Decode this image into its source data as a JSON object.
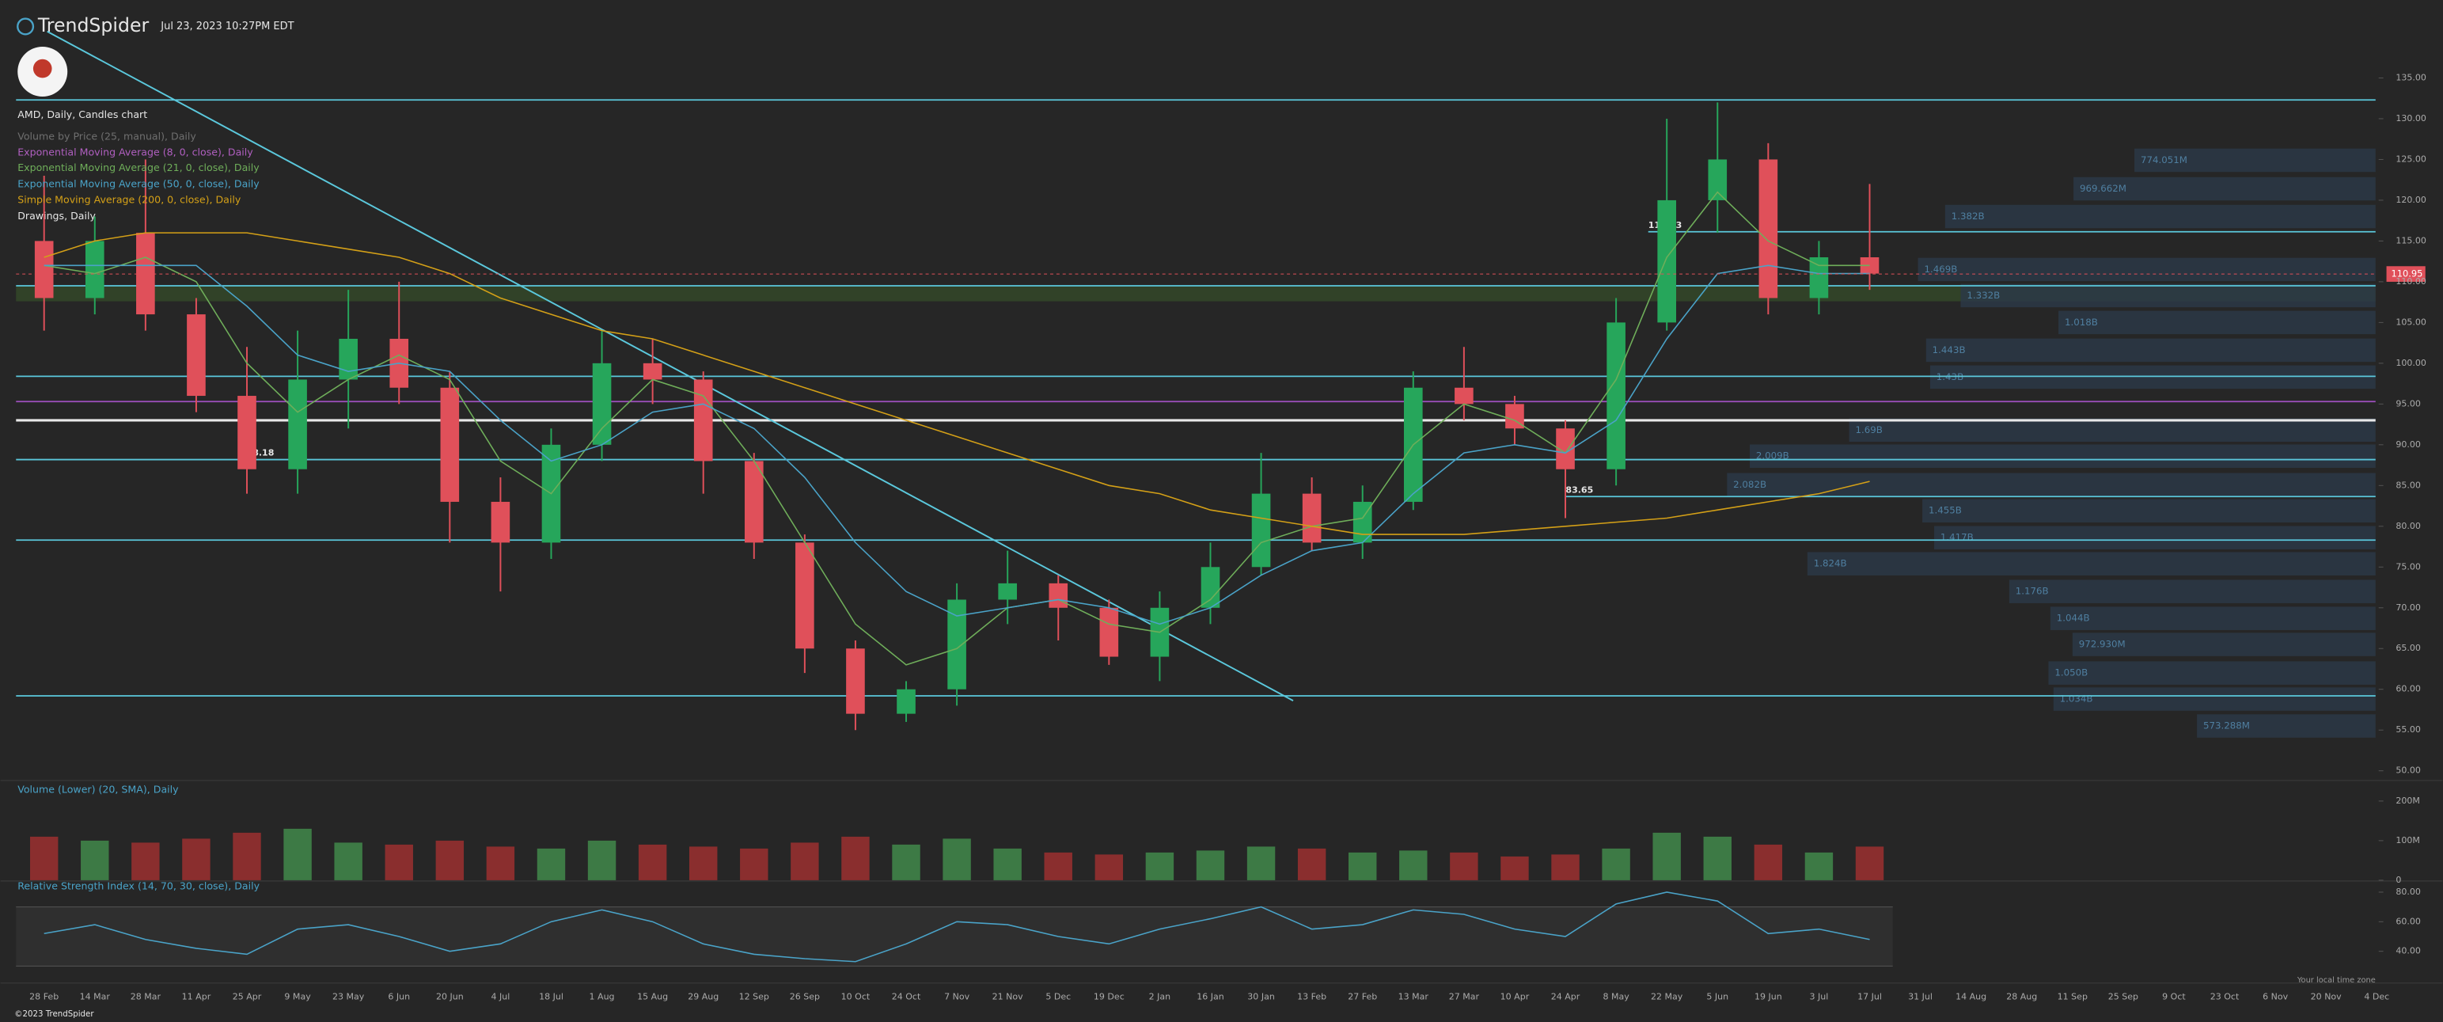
{
  "header": {
    "brand": "TrendSpider",
    "timestamp": "Jul 23, 2023 10:27PM EDT"
  },
  "footer": {
    "copyright": "©2023 TrendSpider",
    "timezone_note": "Your local time zone"
  },
  "chart_data": [
    {
      "type": "candlestick",
      "title": "AMD, Daily, Candles chart",
      "ema8_label": "Exponential Moving Average (8, 0, close), Daily",
      "drawings_label": "Drawings, Daily",
      "x": [
        "28 Feb",
        "14 Mar",
        "28 Mar",
        "11 Apr",
        "25 Apr",
        "9 May",
        "23 May",
        "6 Jun",
        "20 Jun",
        "4 Jul",
        "18 Jul",
        "1 Aug",
        "15 Aug",
        "29 Aug",
        "12 Sep",
        "26 Sep",
        "10 Oct",
        "24 Oct",
        "7 Nov",
        "21 Nov",
        "5 Dec",
        "19 Dec",
        "2 Jan",
        "16 Jan",
        "30 Jan",
        "13 Feb",
        "27 Feb",
        "13 Mar",
        "27 Mar",
        "10 Apr",
        "24 Apr",
        "8 May",
        "22 May",
        "5 Jun",
        "19 Jun",
        "3 Jul",
        "17 Jul",
        "31 Jul",
        "14 Aug",
        "28 Aug",
        "11 Sep",
        "25 Sep",
        "9 Oct",
        "23 Oct",
        "6 Nov",
        "20 Nov",
        "4 Dec"
      ],
      "ohlc": {
        "open": [
          115,
          108,
          116,
          106,
          96,
          87,
          98,
          103,
          97,
          83,
          78,
          90,
          100,
          98,
          88,
          78,
          65,
          57,
          60,
          71,
          73,
          70,
          64,
          70,
          75,
          84,
          78,
          83,
          97,
          95,
          92,
          87,
          105,
          120,
          125,
          108,
          113,
          null,
          null,
          null,
          null,
          null,
          null,
          null,
          null,
          null,
          null
        ],
        "high": [
          123,
          118,
          125,
          108,
          102,
          104,
          109,
          110,
          99,
          86,
          92,
          104,
          103,
          99,
          89,
          79,
          66,
          61,
          73,
          77,
          74,
          71,
          72,
          78,
          89,
          86,
          85,
          99,
          102,
          96,
          93,
          108,
          130,
          132,
          127,
          115,
          122,
          null,
          null,
          null,
          null,
          null,
          null,
          null,
          null,
          null,
          null
        ],
        "low": [
          104,
          106,
          104,
          94,
          84,
          84,
          92,
          95,
          78,
          72,
          76,
          88,
          95,
          84,
          76,
          62,
          55,
          56,
          58,
          68,
          66,
          63,
          61,
          68,
          74,
          77,
          76,
          82,
          93,
          90,
          81,
          85,
          104,
          116,
          106,
          106,
          109,
          null,
          null,
          null,
          null,
          null,
          null,
          null,
          null,
          null,
          null
        ],
        "close": [
          108,
          115,
          106,
          96,
          87,
          98,
          103,
          97,
          83,
          78,
          90,
          100,
          98,
          88,
          78,
          65,
          57,
          60,
          71,
          73,
          70,
          64,
          70,
          75,
          84,
          78,
          83,
          97,
          95,
          92,
          87,
          105,
          120,
          125,
          108,
          113,
          111,
          null,
          null,
          null,
          null,
          null,
          null,
          null,
          null,
          null,
          null
        ]
      },
      "up_color": "#26a65b",
      "down_color": "#e0505a",
      "series": [
        {
          "name": "Exponential Moving Average (21, 0, close), Daily",
          "color": "#6fae5a",
          "values": [
            112,
            111,
            113,
            110,
            100,
            94,
            98,
            101,
            98,
            88,
            84,
            92,
            98,
            96,
            88,
            78,
            68,
            63,
            65,
            70,
            71,
            68,
            67,
            71,
            78,
            80,
            81,
            90,
            95,
            93,
            89,
            98,
            113,
            121,
            115,
            112,
            112,
            null,
            null,
            null,
            null,
            null,
            null,
            null,
            null,
            null,
            null
          ]
        },
        {
          "name": "Exponential Moving Average (50, 0, close), Daily",
          "color": "#4aa3c8",
          "values": [
            112,
            112,
            112,
            112,
            107,
            101,
            99,
            100,
            99,
            93,
            88,
            90,
            94,
            95,
            92,
            86,
            78,
            72,
            69,
            70,
            71,
            70,
            68,
            70,
            74,
            77,
            78,
            84,
            89,
            90,
            89,
            93,
            103,
            111,
            112,
            111,
            111,
            null,
            null,
            null,
            null,
            null,
            null,
            null,
            null,
            null,
            null
          ]
        },
        {
          "name": "Simple Moving Average (200, 0, close), Daily",
          "color": "#d4a017",
          "values": [
            113,
            115,
            116,
            116,
            116,
            115,
            114,
            113,
            111,
            108,
            106,
            104,
            103,
            101,
            99,
            97,
            95,
            93,
            91,
            89,
            87,
            85,
            84,
            82,
            81,
            80,
            79,
            79,
            79,
            79.5,
            80,
            80.5,
            81,
            82,
            83,
            84,
            85.5,
            null,
            null,
            null,
            null,
            null,
            null,
            null,
            null,
            null,
            null
          ]
        }
      ],
      "ylim": [
        49,
        137.3
      ],
      "yticks": [
        {
          "value": 50,
          "label": "50.00"
        },
        {
          "value": 55,
          "label": "55.00"
        },
        {
          "value": 60,
          "label": "60.00"
        },
        {
          "value": 65,
          "label": "65.00"
        },
        {
          "value": 70,
          "label": "70.00"
        },
        {
          "value": 75,
          "label": "75.00"
        },
        {
          "value": 80,
          "label": "80.00"
        },
        {
          "value": 85,
          "label": "85.00"
        },
        {
          "value": 90,
          "label": "90.00"
        },
        {
          "value": 95,
          "label": "95.00"
        },
        {
          "value": 100,
          "label": "100.00"
        },
        {
          "value": 105,
          "label": "105.00"
        },
        {
          "value": 110,
          "label": "110.00"
        },
        {
          "value": 115,
          "label": "115.00"
        },
        {
          "value": 120,
          "label": "120.00"
        },
        {
          "value": 125,
          "label": "125.00"
        },
        {
          "value": 130,
          "label": "130.00"
        },
        {
          "value": 135,
          "label": "135.00"
        }
      ],
      "volume_profile": {
        "name": "Volume by Price (25, manual), Daily",
        "color": "#2b3846",
        "prices": [
          124.9,
          121.4,
          118,
          111.5,
          108.3,
          105,
          101.6,
          98.3,
          91.8,
          88.6,
          85.1,
          81.9,
          78.6,
          75.4,
          72,
          68.7,
          65.5,
          62,
          58.8,
          55.5
        ],
        "values": [
          774051000,
          969662000,
          1382000000,
          1469000000,
          1332000000,
          1018000000,
          1443000000,
          1430000000,
          1690000000,
          2009000000,
          2082000000,
          1455000000,
          1417000000,
          1824000000,
          1176000000,
          1044000000,
          972930000,
          1050000000,
          1034000000,
          573288000
        ],
        "value_labels": [
          "774.051M",
          "969.662M",
          "1.382B",
          "1.469B",
          "1.332B",
          "1.018B",
          "1.443B",
          "1.43B",
          "1.69B",
          "2.009B",
          "2.082B",
          "1.455B",
          "1.417B",
          "1.824B",
          "1.176B",
          "1.044B",
          "972.930M",
          "1.050B",
          "1.034B",
          "573.288M"
        ]
      },
      "levels": [
        132.3,
        109.5,
        98.4,
        95.3,
        93,
        78.3,
        59.2
      ],
      "level_colors": [
        "#5bc8dc",
        "#5bc8dc",
        "#5bc8dc",
        "#a050c0",
        "#e8e8e8",
        "#5bc8dc",
        "#5bc8dc"
      ],
      "annotated_levels": [
        116.13,
        88.18,
        83.65
      ],
      "zone": [
        107.6,
        109.5
      ],
      "trendline": [
        140.7,
        58.6
      ],
      "last_price": 110.95
    },
    {
      "type": "bar",
      "title": "Volume (Lower) (20, SMA), Daily",
      "up_color": "#3d7a45",
      "down_color": "#8a2e2e",
      "values": [
        110000000,
        100000000,
        95000000,
        105000000,
        120000000,
        130000000,
        95000000,
        90000000,
        100000000,
        85000000,
        80000000,
        100000000,
        90000000,
        85000000,
        80000000,
        95000000,
        110000000,
        90000000,
        105000000,
        80000000,
        70000000,
        65000000,
        70000000,
        75000000,
        85000000,
        80000000,
        70000000,
        75000000,
        70000000,
        60000000,
        65000000,
        80000000,
        120000000,
        110000000,
        90000000,
        70000000,
        85000000,
        null,
        null,
        null,
        null,
        null,
        null,
        null,
        null,
        null,
        null
      ],
      "ylim": [
        0,
        244000000
      ],
      "yticks": [
        0,
        {
          "value": 100000000,
          "label": "100M"
        },
        {
          "value": 200000000,
          "label": "200M"
        }
      ]
    },
    {
      "type": "line",
      "title": "Relative Strength Index (14, 70, 30, close), Daily",
      "color": "#4aa3c8",
      "values": [
        52,
        58,
        48,
        42,
        38,
        55,
        58,
        50,
        40,
        45,
        60,
        68,
        60,
        45,
        38,
        35,
        33,
        45,
        60,
        58,
        50,
        45,
        55,
        62,
        70,
        55,
        58,
        68,
        65,
        55,
        50,
        72,
        80,
        74,
        52,
        55,
        48,
        null,
        null,
        null,
        null,
        null,
        null,
        null,
        null,
        null,
        null
      ],
      "bands": [
        30,
        70
      ],
      "ylim": [
        28,
        87
      ],
      "yticks": [
        {
          "value": 40,
          "label": "40.00"
        },
        {
          "value": 60,
          "label": "60.00"
        },
        {
          "value": 80,
          "label": "80.00"
        }
      ]
    }
  ]
}
